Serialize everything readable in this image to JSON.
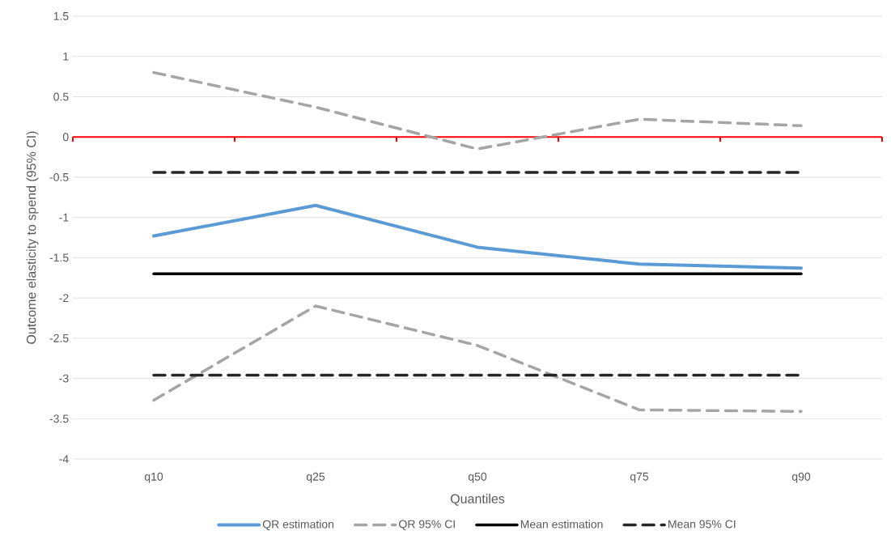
{
  "chart_data": {
    "type": "line",
    "xlabel": "Quantiles",
    "ylabel": "Outcome elasticity to spend (95% CI)",
    "categories": [
      "q10",
      "q25",
      "q50",
      "q75",
      "q90"
    ],
    "series": [
      {
        "name": "QR estimation",
        "color": "#5b9bd5",
        "line_style": "solid",
        "values": [
          -1.23,
          -0.85,
          -1.37,
          -1.58,
          -1.63
        ]
      },
      {
        "name": "QR 95% CI",
        "color": "#a5a5a5",
        "line_style": "dashed",
        "values": [
          0.8,
          0.37,
          -0.15,
          0.22,
          0.14
        ]
      },
      {
        "color": "#a5a5a5",
        "line_style": "dashed",
        "values": [
          -3.27,
          -2.1,
          -2.59,
          -3.39,
          -3.41
        ]
      },
      {
        "name": "Mean estimation",
        "color": "#000000",
        "line_style": "solid",
        "values": [
          -1.7,
          -1.7,
          -1.7,
          -1.7,
          -1.7
        ]
      },
      {
        "name": "Mean 95% CI",
        "color": "#262626",
        "line_style": "dashed",
        "values": [
          -0.44,
          -0.44,
          -0.44,
          -0.44,
          -0.44
        ]
      },
      {
        "color": "#262626",
        "line_style": "dashed",
        "values": [
          -2.96,
          -2.96,
          -2.96,
          -2.96,
          -2.96
        ]
      }
    ],
    "ylim": [
      -4,
      1.5
    ],
    "yticks": [
      -4,
      -3.5,
      -3,
      -2.5,
      -2,
      -1.5,
      -1,
      -0.5,
      0,
      0.5,
      1,
      1.5
    ],
    "ref_lines": [
      {
        "axis": "y",
        "value": 0,
        "color": "#ff0000"
      }
    ],
    "grid": "y",
    "legend": "bottom"
  }
}
